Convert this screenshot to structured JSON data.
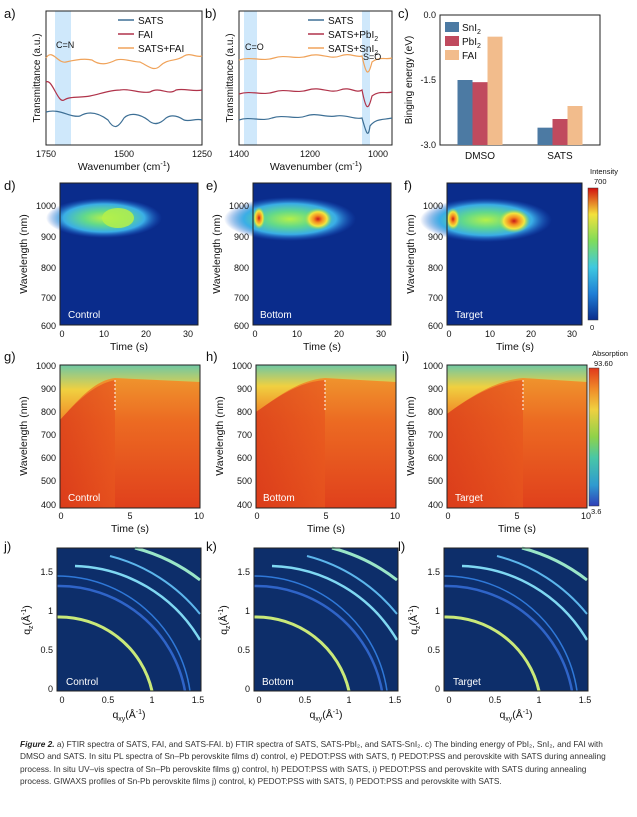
{
  "figure": {
    "panel_a": {
      "letter": "a)",
      "xlabel": "Wavenumber (cm",
      "xlabel_sup": "-1",
      "xlabel_end": ")",
      "ylabel": "Transmittance (a.u.)",
      "ticks": [
        "1750",
        "1500",
        "1250"
      ],
      "annotation": "C=N",
      "legend": [
        "SATS",
        "FAI",
        "SATS+FAI"
      ]
    },
    "panel_b": {
      "letter": "b)",
      "xlabel": "Wavenumber (cm",
      "xlabel_sup": "-1",
      "xlabel_end": ")",
      "ylabel": "Transmittance (a.u.)",
      "ticks": [
        "1400",
        "1200",
        "1000"
      ],
      "annotation_1": "C=O",
      "annotation_2": "S=O",
      "legend": [
        "SATS",
        "SATS+PbI",
        "SATS+SnI"
      ],
      "legend_sub": "2"
    },
    "panel_d": {
      "letter": "d)",
      "inner": "Control"
    },
    "panel_e": {
      "letter": "e)",
      "inner": "Bottom"
    },
    "panel_f": {
      "letter": "f)",
      "inner": "Target"
    },
    "pl_axes": {
      "ylabel": "Wavelength (nm)",
      "xlabel": "Time (s)",
      "yticks": [
        "1000",
        "900",
        "800",
        "700",
        "600"
      ],
      "xticks": [
        "0",
        "10",
        "20",
        "30"
      ]
    },
    "pl_colorbar": {
      "title": "Intensity",
      "max": "700",
      "min": "0"
    },
    "panel_g": {
      "letter": "g)",
      "inner": "Control"
    },
    "panel_h": {
      "letter": "h)",
      "inner": "Bottom"
    },
    "panel_i": {
      "letter": "i)",
      "inner": "Target"
    },
    "uv_axes": {
      "ylabel": "Wavelength (nm)",
      "xlabel": "Time (s)",
      "yticks": [
        "1000",
        "900",
        "800",
        "700",
        "600",
        "500",
        "400"
      ],
      "xticks": [
        "0",
        "5",
        "10"
      ]
    },
    "uv_colorbar": {
      "title": "Absorption",
      "max": "93.60",
      "min": "3.6"
    },
    "panel_j": {
      "letter": "j)",
      "inner": "Control"
    },
    "panel_k": {
      "letter": "k)",
      "inner": "Bottom"
    },
    "panel_l": {
      "letter": "l)",
      "inner": "Target"
    },
    "giwaxs_axes": {
      "ylabel": "q",
      "ylabel_sub": "z",
      "ylabel_unit": "(Å",
      "ylabel_sup": "-1",
      "ylabel_end": ")",
      "xlabel": "q",
      "xlabel_sub": "xy",
      "xlabel_unit": "(Å",
      "xlabel_sup": "-1",
      "xlabel_end": ")",
      "yticks": [
        "1.5",
        "1",
        "0.5",
        "0"
      ],
      "xticks": [
        "0",
        "0.5",
        "1",
        "1.5"
      ]
    }
  },
  "chart_data": {
    "type": "bar",
    "panel_letter": "c)",
    "categories": [
      "DMSO",
      "SATS"
    ],
    "series": [
      {
        "name": "SnI",
        "name_sub": "2",
        "values": [
          -1.5,
          -2.6
        ]
      },
      {
        "name": "PbI",
        "name_sub": "2",
        "values": [
          -1.55,
          -2.4
        ]
      },
      {
        "name": "FAI",
        "values": [
          -0.5,
          -2.1
        ]
      }
    ],
    "ylabel": "Binging energy (eV)",
    "ylim": [
      -3.0,
      0
    ],
    "yticks": [
      "-3.0",
      "-1.5",
      "0.0"
    ],
    "colors": [
      "#4c7aa3",
      "#c04a5e",
      "#f2bc8c"
    ]
  },
  "colors": {
    "sats": "#3d6f95",
    "fai": "#b0334a",
    "sats_fai": "#f0a35a",
    "highlight": "#cfe8fb",
    "giwaxs_bg": "#0d2e6a"
  },
  "caption": {
    "label": "Figure 2.",
    "text": "a) FTIR spectra of SATS, FAI, and SATS-FAI. b) FTIR spectra of SATS, SATS-PbI₂, and SATS-SnI₂. c) The binding energy of PbI₂, SnI₂, and FAI with DMSO and SATS. In situ PL spectra of Sn–Pb perovskite films d) control, e) PEDOT:PSS with SATS, f) PEDOT:PSS and perovskite with SATS during annealing process. In situ UV–vis spectra of Sn–Pb perovskite films g) control, h) PEDOT:PSS with SATS, i) PEDOT:PSS and perovskite with SATS during annealing process. GIWAXS profiles of Sn-Pb perovskite films j) control, k) PEDOT:PSS with SATS, l) PEDOT:PSS and perovskite with SATS."
  }
}
